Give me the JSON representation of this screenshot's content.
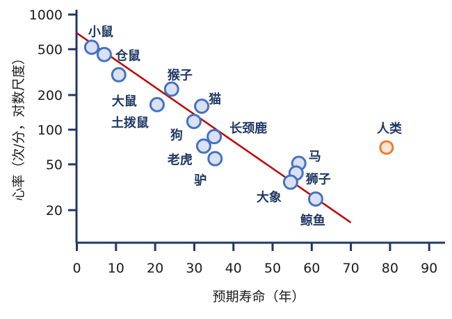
{
  "chart_data": {
    "type": "scatter",
    "xlabel": "预期寿命（年）",
    "ylabel": "心率（次/分，对数尺度）",
    "xlim": [
      0,
      95
    ],
    "ylim": [
      10,
      1000
    ],
    "yscale": "log",
    "xticks": [
      0,
      10,
      20,
      30,
      40,
      50,
      60,
      70,
      80,
      90
    ],
    "yticks": [
      1000,
      500,
      200,
      100,
      50,
      20
    ],
    "grid": false,
    "colors": {
      "axis": "#1f3864",
      "point_fill": "#d9e1f2",
      "point_stroke": "#4472c4",
      "human_fill": "#fbe5d6",
      "human_stroke": "#ed7d31",
      "human_label": "#843c0c",
      "trend": "#c00000",
      "label": "#1f3864"
    },
    "points": [
      {
        "name": "小鼠",
        "x": 3.8,
        "y": 520
      },
      {
        "name": "仓鼠",
        "x": 7,
        "y": 450
      },
      {
        "name": "大鼠",
        "x": 10.7,
        "y": 300
      },
      {
        "name": "猴子",
        "x": 24.2,
        "y": 225
      },
      {
        "name": "土拨鼠",
        "x": 20.5,
        "y": 165
      },
      {
        "name": "猫",
        "x": 31.9,
        "y": 160
      },
      {
        "name": "狗",
        "x": 29.9,
        "y": 118
      },
      {
        "name": "长颈鹿",
        "x": 35.1,
        "y": 87
      },
      {
        "name": "老虎",
        "x": 32.4,
        "y": 72
      },
      {
        "name": "驴",
        "x": 35.3,
        "y": 56
      },
      {
        "name": "马",
        "x": 56.7,
        "y": 51
      },
      {
        "name": "狮子",
        "x": 56,
        "y": 42
      },
      {
        "name": "大象",
        "x": 54.6,
        "y": 35
      },
      {
        "name": "鲸鱼",
        "x": 61,
        "y": 25
      },
      {
        "name": "人类",
        "x": 79.1,
        "y": 70,
        "highlight": true
      }
    ],
    "trendline": {
      "x": [
        0,
        70
      ],
      "y": [
        690,
        15.6
      ]
    }
  }
}
